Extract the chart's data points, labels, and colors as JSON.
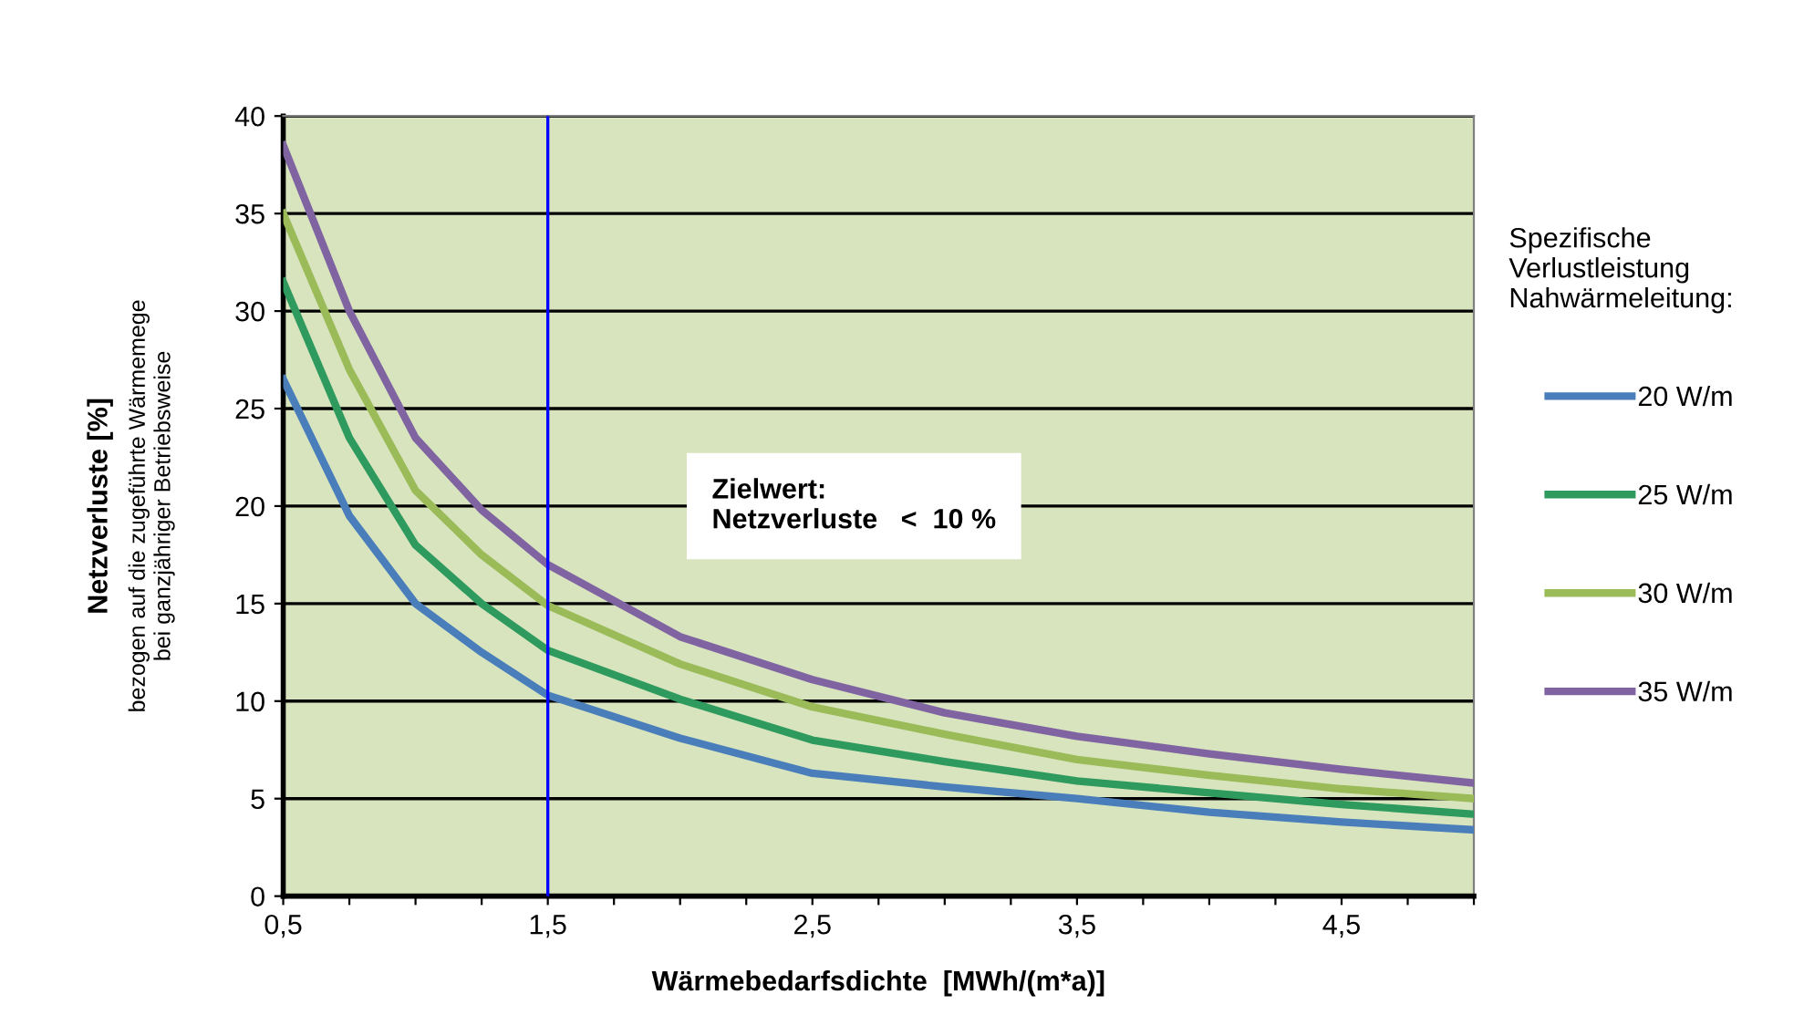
{
  "chart_data": {
    "type": "line",
    "xlabel": "Wärmebedarfsdichte  [MWh/(m*a)]",
    "ylabel": "Netzverluste [%]",
    "legend_title": "Spezifische\nVerlustleistung\nNahwärmeleitung:",
    "annotations": [
      "Zielwert:\nNetzverluste   <  10 %",
      "bezogen auf die zugeführte Wärmemege",
      "bei ganzjähriger Betriebsweise"
    ],
    "x": [
      0.5,
      0.75,
      1.0,
      1.25,
      1.5,
      2.0,
      2.5,
      3.0,
      3.5,
      4.0,
      4.5,
      5.0
    ],
    "series": [
      {
        "name": "20 W/m",
        "color": "#4a7ebb",
        "values": [
          26.5,
          19.5,
          15.0,
          12.5,
          10.3,
          8.1,
          6.3,
          5.6,
          5.0,
          4.3,
          3.8,
          3.4
        ]
      },
      {
        "name": "25 W/m",
        "color": "#2e9a5e",
        "values": [
          31.5,
          23.5,
          18.0,
          15.0,
          12.6,
          10.1,
          8.0,
          6.9,
          5.9,
          5.3,
          4.7,
          4.2
        ]
      },
      {
        "name": "30 W/m",
        "color": "#9bbb59",
        "values": [
          35.0,
          27.0,
          20.8,
          17.5,
          14.9,
          11.9,
          9.7,
          8.3,
          7.0,
          6.2,
          5.5,
          5.0
        ]
      },
      {
        "name": "35 W/m",
        "color": "#8064a2",
        "values": [
          38.5,
          30.0,
          23.5,
          19.8,
          17.0,
          13.3,
          11.1,
          9.4,
          8.2,
          7.3,
          6.5,
          5.8
        ]
      }
    ],
    "xlim": [
      0.5,
      5.0
    ],
    "xticks": [
      {
        "value": 0.5,
        "label": "0,5"
      },
      {
        "value": 0.75,
        "label": null
      },
      {
        "value": 1.0,
        "label": null
      },
      {
        "value": 1.25,
        "label": null
      },
      {
        "value": 1.5,
        "label": "1,5"
      },
      {
        "value": 1.75,
        "label": null
      },
      {
        "value": 2.0,
        "label": null
      },
      {
        "value": 2.25,
        "label": null
      },
      {
        "value": 2.5,
        "label": "2,5"
      },
      {
        "value": 2.75,
        "label": null
      },
      {
        "value": 3.0,
        "label": null
      },
      {
        "value": 3.25,
        "label": null
      },
      {
        "value": 3.5,
        "label": "3,5"
      },
      {
        "value": 3.75,
        "label": null
      },
      {
        "value": 4.0,
        "label": null
      },
      {
        "value": 4.25,
        "label": null
      },
      {
        "value": 4.5,
        "label": "4,5"
      },
      {
        "value": 4.75,
        "label": null
      },
      {
        "value": 5.0,
        "label": null
      }
    ],
    "ylim": [
      0,
      40
    ],
    "yticks": [
      0,
      5,
      10,
      15,
      20,
      25,
      30,
      35,
      40
    ],
    "ref_lines": [
      {
        "axis": "x",
        "value": 1.5,
        "color": "#0000ff",
        "line_style": "solid"
      }
    ],
    "grid": "y",
    "legend": "right",
    "marker": "none",
    "line_style": "solid"
  }
}
